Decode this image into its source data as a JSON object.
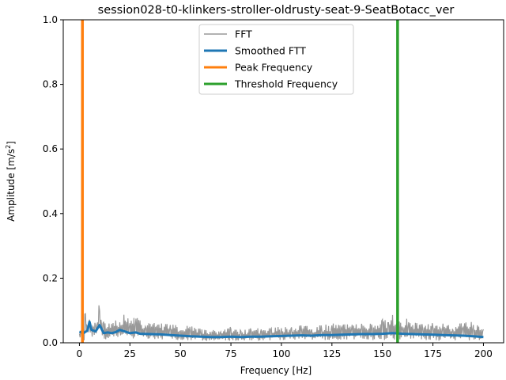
{
  "chart_data": {
    "type": "line",
    "title": "session028-t0-klinkers-stroller-oldrusty-seat-9-SeatBotacc_ver",
    "xlabel": "Frequency [Hz]",
    "ylabel_main": "Amplitude [m/s",
    "ylabel_sup": "2",
    "ylabel_end": "]",
    "xlim": [
      -8,
      210
    ],
    "ylim": [
      0,
      1.0
    ],
    "xticks": [
      0,
      25,
      50,
      75,
      100,
      125,
      150,
      175,
      200
    ],
    "xtick_labels": [
      "0",
      "25",
      "50",
      "75",
      "100",
      "125",
      "150",
      "175",
      "200"
    ],
    "yticks": [
      0.0,
      0.2,
      0.4,
      0.6,
      0.8,
      1.0
    ],
    "ytick_labels": [
      "0.0",
      "0.2",
      "0.4",
      "0.6",
      "0.8",
      "1.0"
    ],
    "grid": false,
    "legend_position": "top-center",
    "series": [
      {
        "name": "FFT",
        "color": "#999999",
        "x": [
          0,
          1,
          2,
          3,
          4,
          5,
          6,
          7,
          8,
          9,
          10,
          11,
          12,
          14,
          16,
          18,
          20,
          22,
          25,
          28,
          30,
          33,
          35,
          38,
          40,
          45,
          50,
          55,
          60,
          65,
          70,
          75,
          80,
          85,
          90,
          95,
          100,
          105,
          110,
          115,
          120,
          125,
          130,
          135,
          140,
          145,
          150,
          153,
          155,
          157,
          160,
          163,
          165,
          170,
          175,
          180,
          185,
          190,
          195,
          200
        ],
        "y_low": [
          0.02,
          0.01,
          0.005,
          0.01,
          0.02,
          0.015,
          0.02,
          0.01,
          0.015,
          0.01,
          0.02,
          0.015,
          0.01,
          0.012,
          0.01,
          0.012,
          0.01,
          0.012,
          0.01,
          0.008,
          0.01,
          0.008,
          0.01,
          0.008,
          0.01,
          0.008,
          0.008,
          0.006,
          0.006,
          0.006,
          0.006,
          0.006,
          0.006,
          0.006,
          0.006,
          0.006,
          0.008,
          0.008,
          0.008,
          0.008,
          0.008,
          0.008,
          0.008,
          0.008,
          0.008,
          0.008,
          0.008,
          0.01,
          0.008,
          0.01,
          0.008,
          0.01,
          0.008,
          0.008,
          0.006,
          0.006,
          0.006,
          0.006,
          0.006,
          0.006
        ],
        "y_high": [
          0.035,
          0.04,
          0.06,
          0.11,
          0.06,
          0.09,
          0.05,
          0.07,
          0.06,
          0.08,
          0.16,
          0.08,
          0.07,
          0.07,
          0.06,
          0.08,
          0.07,
          0.1,
          0.07,
          0.08,
          0.07,
          0.06,
          0.07,
          0.06,
          0.06,
          0.06,
          0.05,
          0.055,
          0.045,
          0.04,
          0.04,
          0.05,
          0.04,
          0.045,
          0.045,
          0.05,
          0.05,
          0.05,
          0.055,
          0.05,
          0.055,
          0.06,
          0.06,
          0.06,
          0.065,
          0.06,
          0.075,
          0.07,
          0.09,
          0.075,
          0.07,
          0.08,
          0.07,
          0.065,
          0.065,
          0.06,
          0.06,
          0.065,
          0.065,
          0.05
        ]
      },
      {
        "name": "Smoothed FTT",
        "color": "#1f77b4",
        "x": [
          0,
          2,
          4,
          5,
          6,
          8,
          10,
          12,
          14,
          16,
          18,
          20,
          22,
          25,
          28,
          30,
          35,
          40,
          45,
          50,
          55,
          60,
          65,
          70,
          75,
          80,
          85,
          90,
          95,
          100,
          105,
          110,
          115,
          120,
          125,
          130,
          135,
          140,
          145,
          150,
          155,
          160,
          165,
          170,
          175,
          180,
          185,
          190,
          195,
          200
        ],
        "y": [
          0.034,
          0.03,
          0.038,
          0.065,
          0.04,
          0.035,
          0.055,
          0.03,
          0.032,
          0.03,
          0.033,
          0.04,
          0.036,
          0.03,
          0.032,
          0.028,
          0.027,
          0.026,
          0.024,
          0.022,
          0.02,
          0.019,
          0.018,
          0.018,
          0.019,
          0.018,
          0.019,
          0.019,
          0.02,
          0.021,
          0.022,
          0.023,
          0.022,
          0.024,
          0.024,
          0.025,
          0.026,
          0.027,
          0.027,
          0.028,
          0.03,
          0.028,
          0.027,
          0.026,
          0.025,
          0.024,
          0.023,
          0.022,
          0.02,
          0.018
        ]
      }
    ],
    "vlines": [
      {
        "name": "Peak Frequency",
        "color": "#ff7f0e",
        "x": 1.5
      },
      {
        "name": "Threshold Frequency",
        "color": "#2ca02c",
        "x": 157.5
      }
    ]
  }
}
